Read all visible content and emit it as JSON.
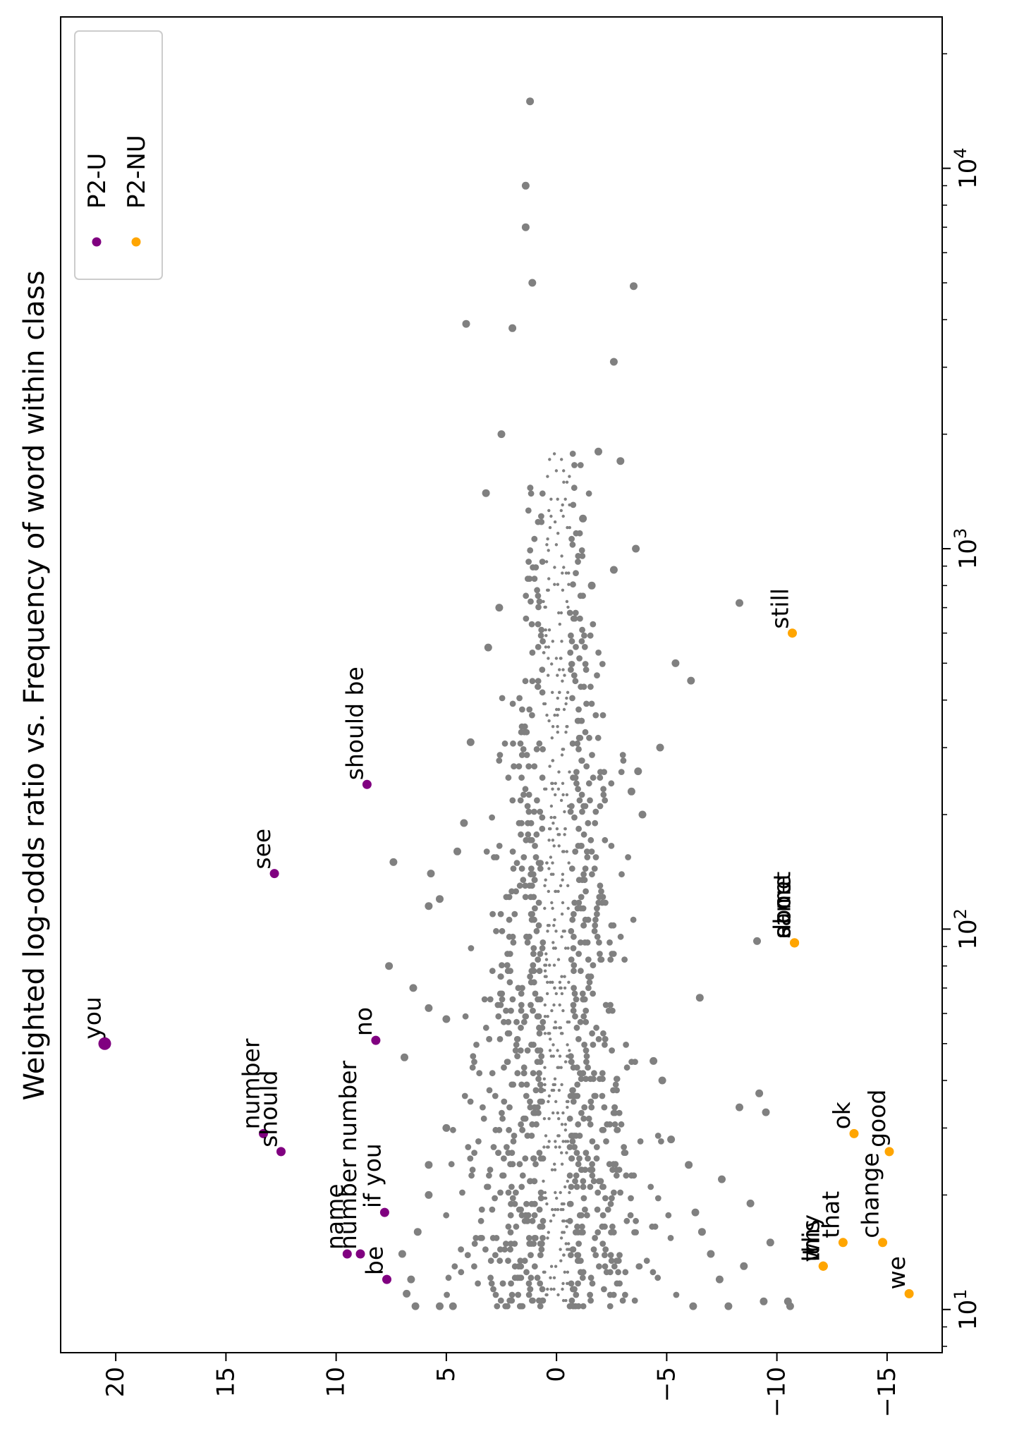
{
  "chart_data": {
    "type": "scatter",
    "title": "Weighted log-odds ratio vs. Frequency of word within class",
    "orientation": "rotated-90-clockwise",
    "x_axis": {
      "label": "",
      "scale": "log",
      "lim": [
        7.7,
        25000
      ],
      "ticks": [
        {
          "value": 10,
          "base": "10",
          "exp": "1"
        },
        {
          "value": 100,
          "base": "10",
          "exp": "2"
        },
        {
          "value": 1000,
          "base": "10",
          "exp": "3"
        },
        {
          "value": 10000,
          "base": "10",
          "exp": "4"
        }
      ]
    },
    "y_axis": {
      "label": "",
      "scale": "linear",
      "lim": [
        -17.5,
        22.5
      ],
      "ticks": [
        {
          "value": 20,
          "label": "20"
        },
        {
          "value": 15,
          "label": "15"
        },
        {
          "value": 10,
          "label": "10"
        },
        {
          "value": 5,
          "label": "5"
        },
        {
          "value": 0,
          "label": "0"
        },
        {
          "value": -5,
          "label": "−5"
        },
        {
          "value": -10,
          "label": "−10"
        },
        {
          "value": -15,
          "label": "−15"
        }
      ]
    },
    "grid": false,
    "legend": {
      "placement": "top-left",
      "entries": [
        {
          "name": "P2-U",
          "color": "#800080"
        },
        {
          "name": "P2-NU",
          "color": "#FFA500"
        }
      ]
    },
    "series": [
      {
        "name": "P2-U",
        "color": "#800080",
        "points": [
          {
            "x": 50,
            "y": 20.5,
            "label": "you"
          },
          {
            "x": 29,
            "y": 13.3,
            "label": "number"
          },
          {
            "x": 26,
            "y": 12.5,
            "label": "should"
          },
          {
            "x": 140,
            "y": 12.8,
            "label": "see"
          },
          {
            "x": 240,
            "y": 8.6,
            "label": "should be"
          },
          {
            "x": 51,
            "y": 8.2,
            "label": "no"
          },
          {
            "x": 14,
            "y": 9.5,
            "label": "name"
          },
          {
            "x": 14,
            "y": 8.9,
            "label": "number number"
          },
          {
            "x": 18,
            "y": 7.8,
            "label": "if you"
          },
          {
            "x": 12,
            "y": 7.7,
            "label": "be"
          }
        ]
      },
      {
        "name": "P2-NU",
        "color": "#FFA500",
        "points": [
          {
            "x": 600,
            "y": -10.7,
            "label": "still"
          },
          {
            "x": 92,
            "y": -10.8,
            "label": "about"
          },
          {
            "x": 92,
            "y": -10.8,
            "label": "same"
          },
          {
            "x": 92,
            "y": -10.8,
            "label": "done"
          },
          {
            "x": 29,
            "y": -13.5,
            "label": "ok"
          },
          {
            "x": 26,
            "y": -15.1,
            "label": "good"
          },
          {
            "x": 15,
            "y": -13.0,
            "label": "that"
          },
          {
            "x": 13,
            "y": -12.1,
            "label": "why"
          },
          {
            "x": 13,
            "y": -12.1,
            "label": "this"
          },
          {
            "x": 13,
            "y": -12.1,
            "label": "it"
          },
          {
            "x": 15,
            "y": -14.8,
            "label": "change"
          },
          {
            "x": 11,
            "y": -16.0,
            "label": "we"
          }
        ]
      },
      {
        "name": "",
        "color": "#808080",
        "points": [
          {
            "x": 15000,
            "y": 1.2
          },
          {
            "x": 9000,
            "y": 1.4
          },
          {
            "x": 7000,
            "y": 1.4
          },
          {
            "x": 5000,
            "y": 1.1
          },
          {
            "x": 4900,
            "y": -3.5
          },
          {
            "x": 3900,
            "y": 4.1
          },
          {
            "x": 3800,
            "y": 2.0
          },
          {
            "x": 3100,
            "y": -2.6
          },
          {
            "x": 2000,
            "y": 2.5
          },
          {
            "x": 1700,
            "y": -2.9
          },
          {
            "x": 1400,
            "y": 3.2
          },
          {
            "x": 1000,
            "y": -3.6
          },
          {
            "x": 720,
            "y": -8.3
          },
          {
            "x": 700,
            "y": 2.6
          },
          {
            "x": 500,
            "y": -5.4
          },
          {
            "x": 450,
            "y": -6.1
          },
          {
            "x": 550,
            "y": 3.1
          },
          {
            "x": 310,
            "y": 3.9
          },
          {
            "x": 300,
            "y": -4.7
          },
          {
            "x": 190,
            "y": 4.2
          },
          {
            "x": 160,
            "y": 4.5
          },
          {
            "x": 150,
            "y": 7.4
          },
          {
            "x": 140,
            "y": 5.7
          },
          {
            "x": 120,
            "y": 5.3
          },
          {
            "x": 115,
            "y": 5.8
          },
          {
            "x": 93,
            "y": -9.1
          },
          {
            "x": 80,
            "y": 7.6
          },
          {
            "x": 70,
            "y": 6.5
          },
          {
            "x": 66,
            "y": -6.5
          },
          {
            "x": 62,
            "y": 5.8
          },
          {
            "x": 58,
            "y": 5.0
          },
          {
            "x": 46,
            "y": 6.9
          },
          {
            "x": 40,
            "y": -4.8
          },
          {
            "x": 37,
            "y": -9.2
          },
          {
            "x": 34,
            "y": -8.3
          },
          {
            "x": 33,
            "y": -9.5
          },
          {
            "x": 22,
            "y": -7.5
          },
          {
            "x": 19,
            "y": -8.8
          },
          {
            "x": 15,
            "y": -9.7
          },
          {
            "x": 13,
            "y": -8.5
          },
          {
            "x": 10.5,
            "y": -10.5
          },
          {
            "x": 10.5,
            "y": -9.4
          },
          {
            "x": 10.2,
            "y": -10.6
          },
          {
            "x": 10.2,
            "y": -7.8
          },
          {
            "x": 10.2,
            "y": -6.2
          },
          {
            "x": 10.2,
            "y": 6.4
          },
          {
            "x": 10.2,
            "y": 5.3
          },
          {
            "x": 10.2,
            "y": 4.7
          },
          {
            "x": 11,
            "y": 6.8
          },
          {
            "x": 12,
            "y": 6.6
          },
          {
            "x": 14,
            "y": 7.0
          },
          {
            "x": 16,
            "y": 6.3
          },
          {
            "x": 20,
            "y": 5.8
          },
          {
            "x": 24,
            "y": 5.8
          },
          {
            "x": 30,
            "y": 5.0
          },
          {
            "x": 12,
            "y": -7.4
          },
          {
            "x": 14,
            "y": -7.0
          },
          {
            "x": 16,
            "y": -6.6
          },
          {
            "x": 18,
            "y": -6.3
          },
          {
            "x": 24,
            "y": -6.0
          },
          {
            "x": 28,
            "y": -5.2
          },
          {
            "x": 45,
            "y": -4.4
          },
          {
            "x": 230,
            "y": -3.4
          },
          {
            "x": 260,
            "y": -3.7
          },
          {
            "x": 200,
            "y": -3.9
          },
          {
            "x": 1800,
            "y": -1.9
          },
          {
            "x": 880,
            "y": -2.6
          },
          {
            "x": 800,
            "y": -1.6
          },
          {
            "x": 1200,
            "y": -1.2
          }
        ]
      }
    ],
    "density_cloud": {
      "color": "#808080",
      "x_range": [
        10.2,
        1800
      ],
      "description_values": {
        "center_y": 0,
        "spread_at_low_freq": 5,
        "spread_at_high_freq": 1.5
      }
    }
  }
}
